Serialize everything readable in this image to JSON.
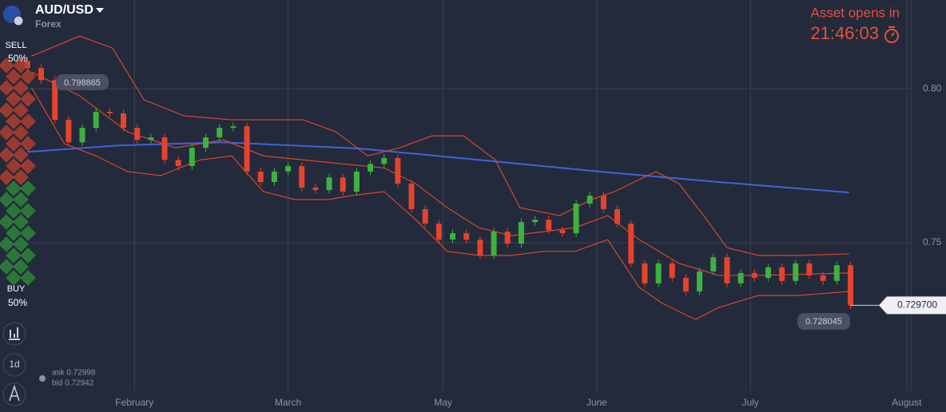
{
  "header": {
    "symbol": "AUD/USD",
    "category": "Forex"
  },
  "timer": {
    "label": "Asset opens in",
    "time": "21:46:03"
  },
  "sentiment": {
    "sell_label": "SELL",
    "sell_pct": "50%",
    "buy_label": "BUY",
    "buy_pct": "50%"
  },
  "toolbar": {
    "period": "1d"
  },
  "quote": {
    "ask": "ask 0.72998",
    "bid": "bid 0.72942"
  },
  "chart_data": {
    "type": "candlestick",
    "up_color": "#3fb13f",
    "down_color": "#e5432d",
    "open": [
      0.809,
      0.8067,
      0.8028,
      0.7899,
      0.7826,
      0.7873,
      0.7925,
      0.792,
      0.7873,
      0.7834,
      0.7842,
      0.7769,
      0.7749,
      0.7808,
      0.7842,
      0.7873,
      0.7878,
      0.7731,
      0.7697,
      0.7731,
      0.7749,
      0.7679,
      0.7671,
      0.7712,
      0.7666,
      0.7731,
      0.7756,
      0.7775,
      0.7692,
      0.7609,
      0.7562,
      0.751,
      0.7531,
      0.751,
      0.7459,
      0.7536,
      0.7497,
      0.7567,
      0.7575,
      0.7541,
      0.7531,
      0.7627,
      0.7653,
      0.7609,
      0.7562,
      0.7433,
      0.7368,
      0.7433,
      0.7386,
      0.7342,
      0.7407,
      0.7453,
      0.7368,
      0.7402,
      0.7386,
      0.742,
      0.7376,
      0.7433,
      0.7394,
      0.7376,
      0.7427
    ],
    "close": [
      0.8067,
      0.8028,
      0.7899,
      0.7826,
      0.7873,
      0.7925,
      0.792,
      0.7873,
      0.7834,
      0.7842,
      0.7769,
      0.7749,
      0.7808,
      0.7842,
      0.7873,
      0.7878,
      0.7731,
      0.7697,
      0.7731,
      0.7749,
      0.7679,
      0.7671,
      0.7712,
      0.7666,
      0.7731,
      0.7756,
      0.7775,
      0.7692,
      0.7609,
      0.7562,
      0.751,
      0.7531,
      0.751,
      0.7459,
      0.7536,
      0.7497,
      0.7567,
      0.7575,
      0.7541,
      0.7531,
      0.7627,
      0.7653,
      0.7609,
      0.7562,
      0.7433,
      0.7368,
      0.7433,
      0.7386,
      0.7342,
      0.7407,
      0.7453,
      0.7368,
      0.7402,
      0.7386,
      0.742,
      0.7376,
      0.7433,
      0.7394,
      0.7376,
      0.7427,
      0.7297
    ],
    "high": [
      0.8102,
      0.8079,
      0.804,
      0.7911,
      0.7885,
      0.7937,
      0.7937,
      0.7932,
      0.7885,
      0.7854,
      0.7854,
      0.7781,
      0.782,
      0.7854,
      0.7885,
      0.789,
      0.789,
      0.7743,
      0.7743,
      0.7761,
      0.7761,
      0.7691,
      0.7724,
      0.7724,
      0.7743,
      0.7768,
      0.7787,
      0.7787,
      0.7704,
      0.7621,
      0.7574,
      0.7543,
      0.7543,
      0.7522,
      0.7548,
      0.7548,
      0.7579,
      0.7587,
      0.7587,
      0.7553,
      0.7639,
      0.7665,
      0.7665,
      0.7621,
      0.7574,
      0.7445,
      0.7445,
      0.7445,
      0.7398,
      0.7419,
      0.7465,
      0.7465,
      0.7414,
      0.7414,
      0.7432,
      0.7432,
      0.7445,
      0.7445,
      0.7406,
      0.7439,
      0.7439
    ],
    "low": [
      0.8055,
      0.8016,
      0.7887,
      0.7814,
      0.7814,
      0.7861,
      0.7908,
      0.7861,
      0.7822,
      0.7822,
      0.7757,
      0.7737,
      0.7737,
      0.7796,
      0.783,
      0.7861,
      0.7719,
      0.7685,
      0.7685,
      0.7719,
      0.7667,
      0.7659,
      0.7659,
      0.7654,
      0.7654,
      0.7719,
      0.7744,
      0.768,
      0.7597,
      0.755,
      0.7498,
      0.7498,
      0.7498,
      0.7447,
      0.7447,
      0.7485,
      0.7485,
      0.7555,
      0.7529,
      0.7519,
      0.7519,
      0.7615,
      0.7597,
      0.755,
      0.7421,
      0.7356,
      0.7356,
      0.7374,
      0.733,
      0.733,
      0.7395,
      0.7356,
      0.7356,
      0.7374,
      0.7374,
      0.7364,
      0.7364,
      0.7382,
      0.7364,
      0.7364,
      0.7285
    ],
    "lines": [
      {
        "color": "#3f63d9",
        "x": [
          0,
          6.7,
          14.3,
          24.2,
          32.9,
          41.7,
          50.4,
          59.9
        ],
        "values": [
          0.7795,
          0.7816,
          0.7826,
          0.7806,
          0.7769,
          0.7731,
          0.7697,
          0.7663
        ]
      },
      {
        "color": "#d9472f",
        "x": [
          0.3,
          3.8,
          6.2,
          8.5,
          11.4,
          14.9,
          20.1,
          22.5,
          24.8,
          27.1,
          29.5,
          31.8,
          34.1,
          35.9,
          38.8,
          41.1,
          42.8,
          45.8,
          47.5,
          49.3,
          51.0,
          53.3,
          56.2,
          59.9
        ],
        "values": [
          0.8106,
          0.8171,
          0.8132,
          0.7964,
          0.7912,
          0.7899,
          0.7899,
          0.786,
          0.7782,
          0.7808,
          0.7847,
          0.7847,
          0.7769,
          0.7614,
          0.7588,
          0.764,
          0.7666,
          0.7731,
          0.7692,
          0.7588,
          0.7484,
          0.7459,
          0.7459,
          0.7464
        ]
      },
      {
        "color": "#d9472f",
        "x": [
          0.3,
          2.7,
          5,
          7.3,
          9.7,
          12.6,
          14.9,
          17.2,
          19.5,
          21.9,
          23.6,
          26,
          28.3,
          30.6,
          32.9,
          35.3,
          37.6,
          39.9,
          42.3,
          44.6,
          46.3,
          48.7,
          50.4,
          53.3,
          56.2,
          59.9
        ],
        "values": [
          0.8003,
          0.7821,
          0.7782,
          0.7731,
          0.7718,
          0.7769,
          0.7782,
          0.7666,
          0.764,
          0.764,
          0.7653,
          0.7666,
          0.7575,
          0.7472,
          0.7459,
          0.7459,
          0.7472,
          0.7472,
          0.751,
          0.7355,
          0.7303,
          0.7251,
          0.729,
          0.7329,
          0.7329,
          0.7342
        ]
      },
      {
        "color": "#d9472f",
        "x": [
          0.3,
          3.8,
          7.3,
          10.8,
          14.3,
          17.2,
          20.1,
          23,
          26,
          28.3,
          30.6,
          32.9,
          35.3,
          37.6,
          39.9,
          42.3,
          44.6,
          47.5,
          50.4,
          53.3,
          59.9
        ],
        "values": [
          0.8054,
          0.7977,
          0.786,
          0.7808,
          0.7834,
          0.7782,
          0.7769,
          0.7756,
          0.7743,
          0.7692,
          0.7614,
          0.7549,
          0.7523,
          0.7536,
          0.7549,
          0.7588,
          0.751,
          0.7433,
          0.7394,
          0.7394,
          0.7402
        ]
      }
    ],
    "xlim": [
      -2,
      64.4
    ],
    "xticks": [
      {
        "value": 7.8,
        "label": "February"
      },
      {
        "value": 19,
        "label": "March"
      },
      {
        "value": 30.3,
        "label": "May"
      },
      {
        "value": 41.5,
        "label": "June"
      },
      {
        "value": 52.7,
        "label": "July"
      },
      {
        "value": 64.1,
        "label": "August"
      }
    ],
    "ylim": [
      0.7018,
      0.8288
    ],
    "yticks": [
      {
        "value": 0.8,
        "label": "0.80"
      },
      0.75
    ],
    "grid": true,
    "high_label": 0.798865,
    "low_label": 0.728045,
    "last": {
      "value": 0.7297,
      "label": "0.729700"
    }
  }
}
